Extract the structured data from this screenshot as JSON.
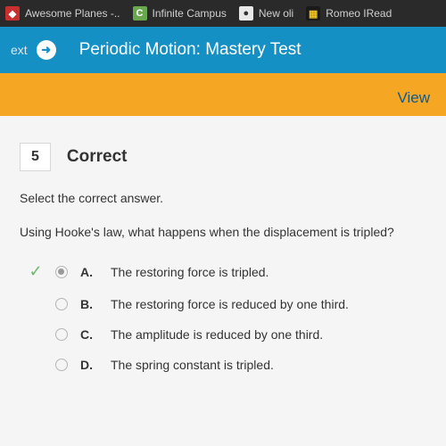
{
  "bookmarks": [
    {
      "label": "Awesome Planes -..",
      "bg": "#c83030",
      "fg": "#ffffff",
      "ch": "◆"
    },
    {
      "label": "Infinite Campus",
      "bg": "#6aa84f",
      "fg": "#ffffff",
      "ch": "C"
    },
    {
      "label": "New oli",
      "bg": "#e8e8e8",
      "fg": "#333333",
      "ch": "●"
    },
    {
      "label": "Romeo IRead",
      "bg": "#1a1a1a",
      "fg": "#f0c020",
      "ch": "▦"
    }
  ],
  "header": {
    "ext": "ext",
    "arrow": "➜",
    "title": "Periodic Motion: Mastery Test"
  },
  "orange": {
    "view": "View"
  },
  "question": {
    "number": "5",
    "status": "Correct",
    "instruction": "Select the correct answer.",
    "text": "Using Hooke's law, what happens when the displacement is tripled?",
    "options": [
      {
        "letter": "A.",
        "text": "The restoring force is tripled.",
        "selected": true,
        "correct": true
      },
      {
        "letter": "B.",
        "text": "The restoring force is reduced by one third.",
        "selected": false,
        "correct": false
      },
      {
        "letter": "C.",
        "text": "The amplitude is reduced by one third.",
        "selected": false,
        "correct": false
      },
      {
        "letter": "D.",
        "text": "The spring constant is tripled.",
        "selected": false,
        "correct": false
      }
    ]
  },
  "colors": {
    "header_bg": "#1590c4",
    "orange_bg": "#f5a623",
    "correct_check": "#6db86d"
  }
}
